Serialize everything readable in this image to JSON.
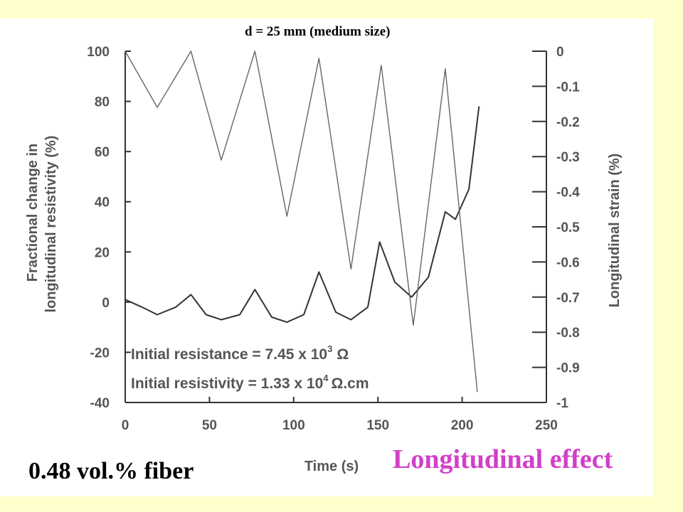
{
  "title": "d =  25 mm (medium size)",
  "footer_left": "0.48 vol.% fiber",
  "footer_right": "Longitudinal effect",
  "annotations": {
    "line1_prefix": "Initial resistance = 7.45 x 10",
    "line1_exp": "3",
    "line1_unit": "Ω",
    "line2_prefix": "Initial resistivity = 1.33 x 10",
    "line2_exp": "4",
    "line2_unit": "Ω.cm"
  },
  "chart_data": {
    "type": "line",
    "xlabel": "Time (s)",
    "ylabel_left_line1": "Fractional change in",
    "ylabel_left_line2": "longitudinal resistivity (%)",
    "ylabel_right": "Longitudinal strain (%)",
    "xlim": [
      0,
      250
    ],
    "ylim_left": [
      -40,
      100
    ],
    "ylim_right": [
      -1,
      0
    ],
    "x_ticks": [
      "0",
      "50",
      "100",
      "150",
      "200",
      "250"
    ],
    "y_left_ticks": [
      "100",
      "80",
      "60",
      "40",
      "20",
      "0",
      "-20",
      "-40"
    ],
    "y_right_ticks": [
      "0",
      "-0.1",
      "-0.2",
      "-0.3",
      "-0.4",
      "-0.5",
      "-0.6",
      "-0.7",
      "-0.8",
      "-0.9",
      "-1"
    ],
    "series": [
      {
        "axis": "left",
        "x": [
          0,
          10,
          19,
          30,
          39,
          48,
          57,
          68,
          77,
          87,
          96,
          106,
          115,
          125,
          134,
          144,
          151,
          160,
          170,
          180,
          190,
          196,
          204,
          210
        ],
        "y": [
          1,
          -2,
          -5,
          -2,
          3,
          -5,
          -7,
          -5,
          5,
          -6,
          -8,
          -5,
          12,
          -4,
          -7,
          -2,
          24,
          8,
          2,
          10,
          36,
          33,
          45,
          78
        ]
      },
      {
        "axis": "right",
        "x": [
          0,
          19,
          39,
          57,
          77,
          96,
          115,
          134,
          152,
          171,
          190,
          209
        ],
        "y": [
          0,
          -0.16,
          0,
          -0.31,
          0,
          -0.47,
          -0.02,
          -0.62,
          -0.04,
          -0.78,
          -0.05,
          -0.97
        ]
      }
    ]
  }
}
